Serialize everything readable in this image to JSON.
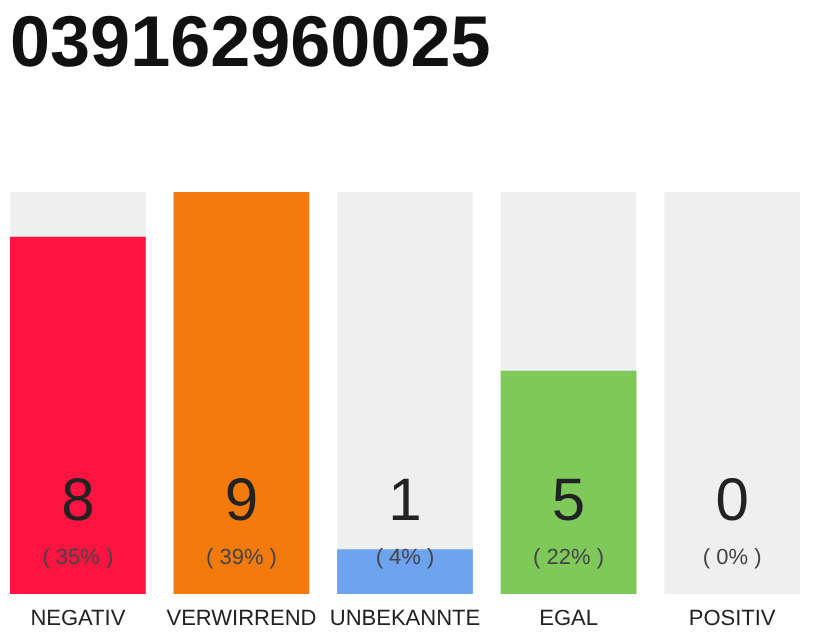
{
  "chart_data": {
    "type": "bar",
    "title": "039162960025",
    "categories": [
      "NEGATIV",
      "VERWIRREND",
      "UNBEKANNTE",
      "EGAL",
      "POSITIV"
    ],
    "values": [
      8,
      9,
      1,
      5,
      0
    ],
    "colors": [
      "#fe1440",
      "#f47b0b",
      "#6ea3f0",
      "#7fc95a",
      "#b0b0b0"
    ],
    "data_labels": true,
    "annotations": [
      "( 35% )",
      "( 39% )",
      "( 4% )",
      "( 22% )",
      "( 0% )"
    ],
    "bands": [
      {
        "axis": "x",
        "from": "NEGATIV",
        "to": "NEGATIV",
        "color": "#efefef"
      },
      {
        "axis": "x",
        "from": "UNBEKANNTE",
        "to": "UNBEKANNTE",
        "color": "#efefef"
      },
      {
        "axis": "x",
        "from": "EGAL",
        "to": "EGAL",
        "color": "#efefef"
      },
      {
        "axis": "x",
        "from": "POSITIV",
        "to": "POSITIV",
        "color": "#efefef"
      }
    ],
    "grid": false
  }
}
